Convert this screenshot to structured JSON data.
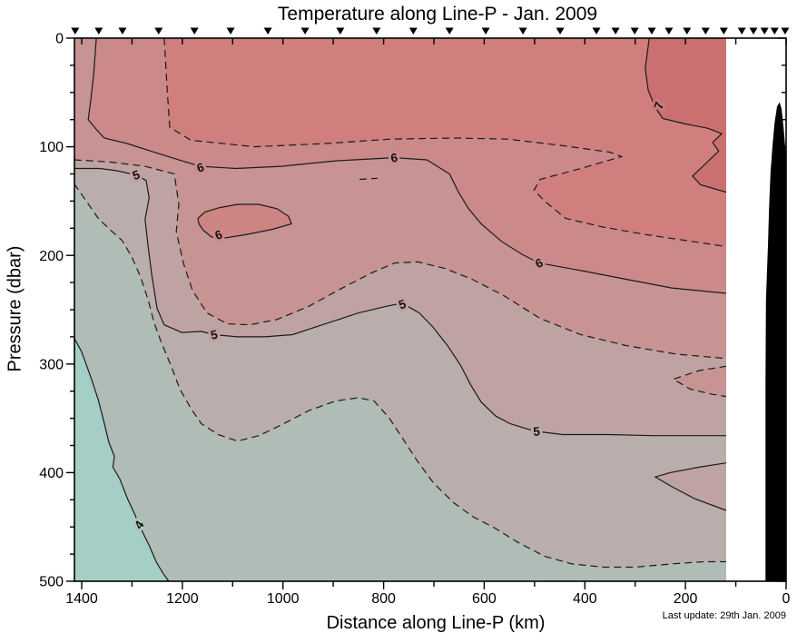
{
  "title": "Temperature along Line-P - Jan. 2009",
  "footnote": "Last update: 29th Jan. 2009",
  "axes": {
    "x_label": "Distance along Line-P (km)",
    "y_label": "Pressure (dbar)",
    "x_tick_labels": [
      "1400",
      "1200",
      "1000",
      "800",
      "600",
      "400",
      "200",
      "0"
    ],
    "x_ticks_minor_km": [
      1300,
      1100,
      900,
      700,
      500,
      300,
      100
    ],
    "y_tick_labels": [
      "0",
      "100",
      "200",
      "300",
      "400",
      "500"
    ],
    "y_minor_step_dbar": 25
  },
  "chart_data": {
    "type": "heatmap",
    "subtype": "filled-contour-section",
    "title": "Temperature along Line-P - Jan. 2009",
    "xlabel": "Distance along Line-P (km)",
    "ylabel": "Pressure (dbar)",
    "x_axis": {
      "unit": "km",
      "range": [
        1415,
        0
      ],
      "reversed": true,
      "tick_step_major": 200,
      "tick_step_minor": 100
    },
    "y_axis": {
      "unit": "dbar",
      "range": [
        0,
        500
      ],
      "inverted": true,
      "tick_step_major": 100,
      "tick_step_minor": 25
    },
    "data_extent_km": [
      1415,
      118
    ],
    "contour_levels_solid_degC": [
      4,
      5,
      6,
      7
    ],
    "contour_levels_dashed_degC": [
      4.5,
      5.5,
      6.5
    ],
    "temperature_bands_degC": [
      {
        "range": "<4",
        "color": "#a5cec6"
      },
      {
        "range": "4-4.5",
        "color": "#b0bcb6"
      },
      {
        "range": "4.5-5",
        "color": "#b9aeac"
      },
      {
        "range": "5-5.5",
        "color": "#bfa3a3"
      },
      {
        "range": "5.5-6",
        "color": "#c79393"
      },
      {
        "range": "6-6.5",
        "color": "#cb8989"
      },
      {
        "range": "6.5-7",
        "color": "#d07e7e"
      },
      {
        "range": ">7",
        "color": "#ca7070"
      }
    ],
    "colors": {
      "island": "#cf8484",
      "land": "#000000",
      "frame": "#000000",
      "contour_line": "#1b1b1b"
    },
    "station_positions_km": [
      1413,
      1366,
      1319,
      1247,
      1176,
      1104,
      1030,
      956,
      886,
      814,
      741,
      669,
      597,
      523,
      449,
      377,
      339,
      301,
      267,
      233,
      197,
      160,
      124,
      88,
      65,
      43,
      23,
      2
    ],
    "contours": [
      {
        "level": 7,
        "style": "solid",
        "points": [
          [
            272,
            0
          ],
          [
            280,
            28
          ],
          [
            274,
            48
          ],
          [
            260,
            64
          ],
          [
            245,
            74
          ],
          [
            200,
            79
          ],
          [
            155,
            83
          ],
          [
            128,
            88
          ],
          [
            146,
            96
          ],
          [
            134,
            104
          ],
          [
            170,
            120
          ],
          [
            186,
            127
          ],
          [
            170,
            135
          ],
          [
            118,
            142
          ]
        ]
      },
      {
        "level": 6.5,
        "style": "dashed",
        "points": [
          [
            1236,
            0
          ],
          [
            1230,
            48
          ],
          [
            1225,
            82
          ],
          [
            1183,
            94
          ],
          [
            1057,
            100
          ],
          [
            913,
            97
          ],
          [
            787,
            93
          ],
          [
            660,
            92
          ],
          [
            552,
            93
          ],
          [
            444,
            99
          ],
          [
            350,
            105
          ],
          [
            327,
            109
          ],
          [
            408,
            120
          ],
          [
            489,
            130
          ],
          [
            501,
            140
          ],
          [
            480,
            150
          ],
          [
            438,
            166
          ],
          [
            363,
            174
          ],
          [
            276,
            181
          ],
          [
            161,
            189
          ],
          [
            118,
            192
          ]
        ]
      },
      {
        "level": 6,
        "style": "solid",
        "points": [
          [
            1371,
            0
          ],
          [
            1376,
            32
          ],
          [
            1382,
            57
          ],
          [
            1387,
            75
          ],
          [
            1371,
            84
          ],
          [
            1355,
            92
          ],
          [
            1310,
            97
          ],
          [
            1256,
            105
          ],
          [
            1201,
            113
          ],
          [
            1164,
            118
          ],
          [
            1093,
            120
          ],
          [
            1003,
            118
          ],
          [
            895,
            113
          ],
          [
            779,
            110
          ],
          [
            714,
            112
          ],
          [
            669,
            125
          ],
          [
            651,
            142
          ],
          [
            631,
            157
          ],
          [
            606,
            171
          ],
          [
            566,
            187
          ],
          [
            525,
            199
          ],
          [
            491,
            207
          ],
          [
            408,
            214
          ],
          [
            318,
            222
          ],
          [
            227,
            230
          ],
          [
            118,
            235
          ]
        ]
      },
      {
        "level": 6,
        "style": "solid",
        "name": "island",
        "closed": true,
        "points": [
          [
            1169,
            166
          ],
          [
            1155,
            160
          ],
          [
            1126,
            156
          ],
          [
            1090,
            153
          ],
          [
            1048,
            153
          ],
          [
            1012,
            157
          ],
          [
            989,
            164
          ],
          [
            983,
            171
          ],
          [
            1021,
            176
          ],
          [
            1075,
            181
          ],
          [
            1117,
            184
          ],
          [
            1142,
            183
          ],
          [
            1158,
            177
          ],
          [
            1167,
            171
          ]
        ]
      },
      {
        "level": 6.5,
        "style": "dashed",
        "name": "fragment",
        "points": [
          [
            848,
            130
          ],
          [
            812,
            129
          ]
        ]
      },
      {
        "level": 5.5,
        "style": "dashed",
        "points": [
          [
            1415,
            112
          ],
          [
            1346,
            114
          ],
          [
            1274,
            118
          ],
          [
            1216,
            125
          ],
          [
            1207,
            153
          ],
          [
            1212,
            178
          ],
          [
            1198,
            207
          ],
          [
            1180,
            232
          ],
          [
            1151,
            253
          ],
          [
            1111,
            263
          ],
          [
            1066,
            264
          ],
          [
            1012,
            259
          ],
          [
            949,
            247
          ],
          [
            886,
            231
          ],
          [
            823,
            216
          ],
          [
            778,
            207
          ],
          [
            732,
            206
          ],
          [
            678,
            212
          ],
          [
            624,
            222
          ],
          [
            561,
            237
          ],
          [
            489,
            258
          ],
          [
            408,
            273
          ],
          [
            318,
            283
          ],
          [
            218,
            291
          ],
          [
            118,
            295
          ]
        ]
      },
      {
        "level": 5,
        "style": "solid",
        "points": [
          [
            1415,
            120
          ],
          [
            1364,
            120
          ],
          [
            1331,
            122
          ],
          [
            1292,
            126
          ],
          [
            1272,
            131
          ],
          [
            1266,
            147
          ],
          [
            1274,
            167
          ],
          [
            1268,
            192
          ],
          [
            1261,
            217
          ],
          [
            1250,
            249
          ],
          [
            1236,
            264
          ],
          [
            1201,
            271
          ],
          [
            1162,
            270
          ],
          [
            1137,
            273
          ],
          [
            1090,
            275
          ],
          [
            1036,
            275
          ],
          [
            981,
            273
          ],
          [
            922,
            264
          ],
          [
            850,
            253
          ],
          [
            796,
            247
          ],
          [
            763,
            244
          ],
          [
            729,
            253
          ],
          [
            702,
            266
          ],
          [
            673,
            283
          ],
          [
            646,
            302
          ],
          [
            626,
            320
          ],
          [
            606,
            335
          ],
          [
            577,
            348
          ],
          [
            548,
            355
          ],
          [
            520,
            359
          ],
          [
            496,
            362
          ],
          [
            444,
            365
          ],
          [
            354,
            365
          ],
          [
            263,
            366
          ],
          [
            191,
            366
          ],
          [
            118,
            366
          ]
        ]
      },
      {
        "level": 4.5,
        "style": "dashed",
        "points": [
          [
            1415,
            134
          ],
          [
            1391,
            150
          ],
          [
            1367,
            166
          ],
          [
            1342,
            177
          ],
          [
            1320,
            186
          ],
          [
            1301,
            201
          ],
          [
            1283,
            220
          ],
          [
            1268,
            241
          ],
          [
            1256,
            262
          ],
          [
            1241,
            281
          ],
          [
            1223,
            301
          ],
          [
            1205,
            323
          ],
          [
            1183,
            341
          ],
          [
            1162,
            355
          ],
          [
            1129,
            365
          ],
          [
            1090,
            371
          ],
          [
            1048,
            366
          ],
          [
            1003,
            356
          ],
          [
            949,
            343
          ],
          [
            895,
            334
          ],
          [
            850,
            331
          ],
          [
            819,
            334
          ],
          [
            790,
            349
          ],
          [
            760,
            370
          ],
          [
            732,
            390
          ],
          [
            700,
            410
          ],
          [
            660,
            428
          ],
          [
            621,
            441
          ],
          [
            579,
            451
          ],
          [
            534,
            464
          ],
          [
            480,
            477
          ],
          [
            426,
            484
          ],
          [
            363,
            487
          ],
          [
            300,
            487
          ],
          [
            227,
            484
          ],
          [
            164,
            482
          ],
          [
            118,
            482
          ]
        ]
      },
      {
        "level": 4,
        "style": "solid",
        "points": [
          [
            1415,
            276
          ],
          [
            1400,
            289
          ],
          [
            1382,
            312
          ],
          [
            1367,
            333
          ],
          [
            1357,
            351
          ],
          [
            1346,
            372
          ],
          [
            1335,
            385
          ],
          [
            1338,
            395
          ],
          [
            1324,
            406
          ],
          [
            1310,
            423
          ],
          [
            1295,
            438
          ],
          [
            1281,
            453
          ],
          [
            1266,
            467
          ],
          [
            1252,
            482
          ],
          [
            1238,
            493
          ],
          [
            1227,
            500
          ]
        ]
      },
      {
        "level": 5.5,
        "style": "dashed",
        "name": "tongue",
        "points": [
          [
            118,
            302
          ],
          [
            173,
            306
          ],
          [
            224,
            314
          ],
          [
            191,
            323
          ],
          [
            146,
            328
          ],
          [
            118,
            330
          ]
        ]
      },
      {
        "level": 5,
        "style": "solid",
        "name": "tongue",
        "points": [
          [
            118,
            391
          ],
          [
            173,
            395
          ],
          [
            231,
            400
          ],
          [
            260,
            404
          ],
          [
            227,
            413
          ],
          [
            182,
            424
          ],
          [
            141,
            431
          ],
          [
            118,
            435
          ]
        ]
      }
    ],
    "contour_labels": [
      {
        "text": "7",
        "km": 253,
        "dbar": 62,
        "rot": -72,
        "halo": "#cd7979"
      },
      {
        "text": "6",
        "km": 1164,
        "dbar": 119,
        "rot": -18,
        "halo": "#c98e8e"
      },
      {
        "text": "6",
        "km": 779,
        "dbar": 110,
        "rot": -8,
        "halo": "#c98e8e"
      },
      {
        "text": "6",
        "km": 1128,
        "dbar": 181,
        "rot": -20,
        "halo": "#cd8888"
      },
      {
        "text": "6",
        "km": 491,
        "dbar": 207,
        "rot": -22,
        "halo": "#c98e8e"
      },
      {
        "text": "5",
        "km": 1292,
        "dbar": 126,
        "rot": -20,
        "halo": "#c19f9f"
      },
      {
        "text": "5",
        "km": 1137,
        "dbar": 273,
        "rot": -12,
        "halo": "#c19f9f"
      },
      {
        "text": "5",
        "km": 763,
        "dbar": 245,
        "rot": -18,
        "halo": "#c19f9f"
      },
      {
        "text": "5",
        "km": 496,
        "dbar": 362,
        "rot": -5,
        "halo": "#bca9a9"
      },
      {
        "text": "4",
        "km": 1286,
        "dbar": 448,
        "rot": -55,
        "halo": "#abc3bc"
      }
    ],
    "bathymetry_km_dbar": [
      [
        41,
        500
      ],
      [
        41,
        316
      ],
      [
        40,
        241
      ],
      [
        36,
        191
      ],
      [
        34,
        157
      ],
      [
        31,
        124
      ],
      [
        27,
        99
      ],
      [
        23,
        78
      ],
      [
        18,
        63
      ],
      [
        13,
        59
      ],
      [
        9,
        65
      ],
      [
        5,
        82
      ],
      [
        2,
        99
      ],
      [
        0,
        111
      ],
      [
        0,
        500
      ]
    ]
  }
}
